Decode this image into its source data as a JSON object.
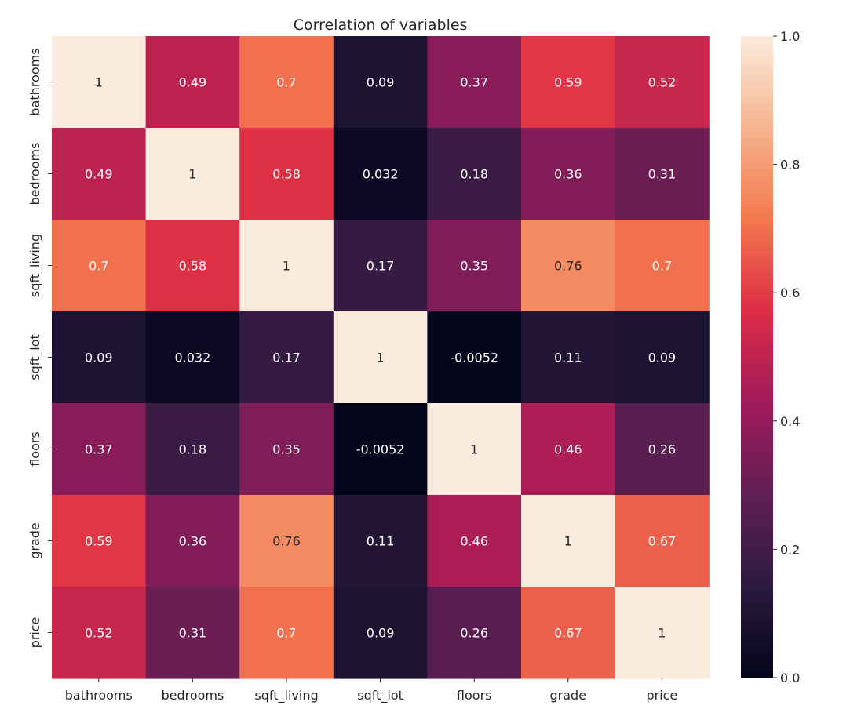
{
  "chart_data": {
    "type": "heatmap",
    "title": "Correlation of variables",
    "x_labels": [
      "bathrooms",
      "bedrooms",
      "sqft_living",
      "sqft_lot",
      "floors",
      "grade",
      "price"
    ],
    "y_labels": [
      "bathrooms",
      "bedrooms",
      "sqft_living",
      "sqft_lot",
      "floors",
      "grade",
      "price"
    ],
    "matrix": [
      [
        1,
        0.49,
        0.7,
        0.09,
        0.37,
        0.59,
        0.52
      ],
      [
        0.49,
        1,
        0.58,
        0.032,
        0.18,
        0.36,
        0.31
      ],
      [
        0.7,
        0.58,
        1,
        0.17,
        0.35,
        0.76,
        0.7
      ],
      [
        0.09,
        0.032,
        0.17,
        1,
        -0.0052,
        0.11,
        0.09
      ],
      [
        0.37,
        0.18,
        0.35,
        -0.0052,
        1,
        0.46,
        0.26
      ],
      [
        0.59,
        0.36,
        0.76,
        0.11,
        0.46,
        1,
        0.67
      ],
      [
        0.52,
        0.31,
        0.7,
        0.09,
        0.26,
        0.67,
        1
      ]
    ],
    "annotations": [
      [
        "1",
        "0.49",
        "0.7",
        "0.09",
        "0.37",
        "0.59",
        "0.52"
      ],
      [
        "0.49",
        "1",
        "0.58",
        "0.032",
        "0.18",
        "0.36",
        "0.31"
      ],
      [
        "0.7",
        "0.58",
        "1",
        "0.17",
        "0.35",
        "0.76",
        "0.7"
      ],
      [
        "0.09",
        "0.032",
        "0.17",
        "1",
        "-0.0052",
        "0.11",
        "0.09"
      ],
      [
        "0.37",
        "0.18",
        "0.35",
        "-0.0052",
        "1",
        "0.46",
        "0.26"
      ],
      [
        "0.59",
        "0.36",
        "0.76",
        "0.11",
        "0.46",
        "1",
        "0.67"
      ],
      [
        "0.52",
        "0.31",
        "0.7",
        "0.09",
        "0.26",
        "0.67",
        "1"
      ]
    ],
    "colorbar": {
      "range": [
        0.0,
        1.0
      ],
      "ticks": [
        0.0,
        0.2,
        0.4,
        0.6,
        0.8,
        1.0
      ],
      "tick_labels": [
        "0.0",
        "0.2",
        "0.4",
        "0.6",
        "0.8",
        "1.0"
      ]
    },
    "colormap": "rocket",
    "colormap_stops": [
      "#03051a",
      "#2b1a3e",
      "#611f53",
      "#a11a5b",
      "#dd2c45",
      "#f3784e",
      "#f6b48e",
      "#faebdd"
    ]
  }
}
